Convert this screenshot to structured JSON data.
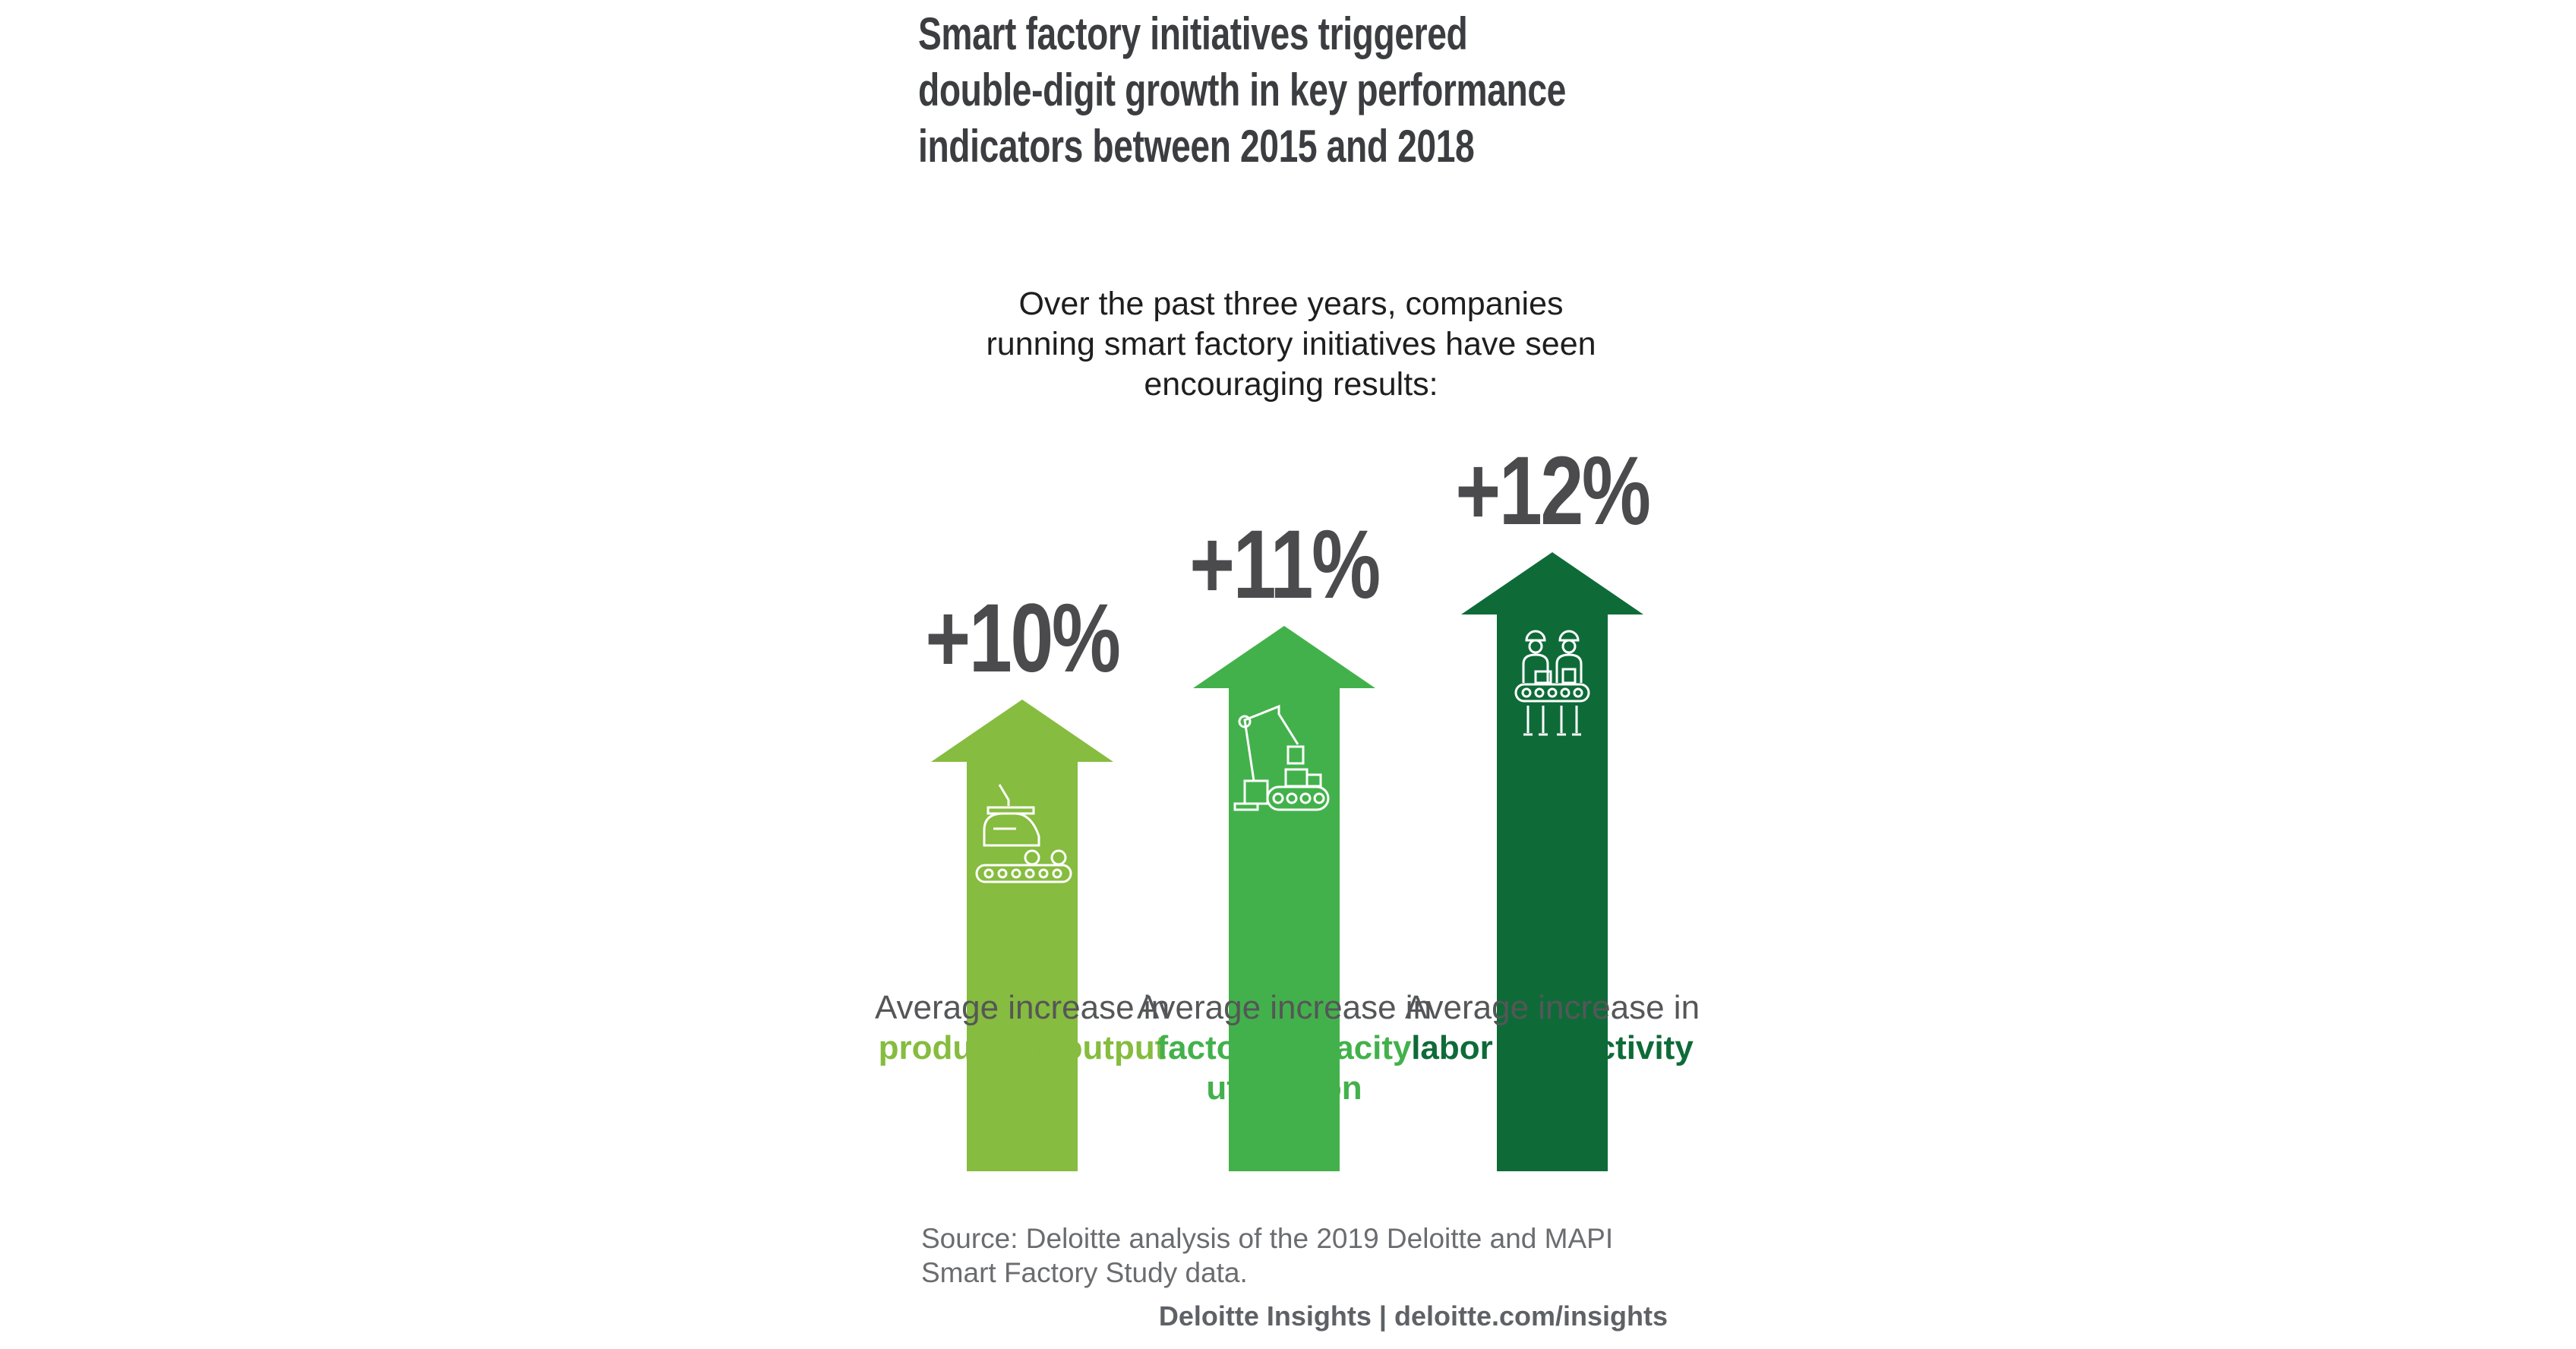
{
  "title": "Smart factory initiatives triggered double-digit growth in key performance indicators between 2015 and 2018",
  "subtitle": "Over the past three years, companies running smart factory initiatives have seen encouraging results:",
  "chart_data": {
    "type": "bar",
    "style": "upward arrows",
    "categories": [
      "production output",
      "factory capacity utilization",
      "labor productivity"
    ],
    "values": [
      10,
      11,
      12
    ],
    "value_labels": [
      "+10%",
      "+11%",
      "+12%"
    ],
    "category_prefix": "Average increase in",
    "colors": [
      "#86bc3f",
      "#43b14b",
      "#0e6b38"
    ],
    "icons": [
      "car-assembly-conveyor-icon",
      "robotic-arm-conveyor-icon",
      "workers-conveyor-icon"
    ],
    "grid": false,
    "legend": "none"
  },
  "source": "Source: Deloitte analysis of the 2019 Deloitte and MAPI Smart Factory Study data.",
  "footer": "Deloitte Insights | deloitte.com/insights"
}
